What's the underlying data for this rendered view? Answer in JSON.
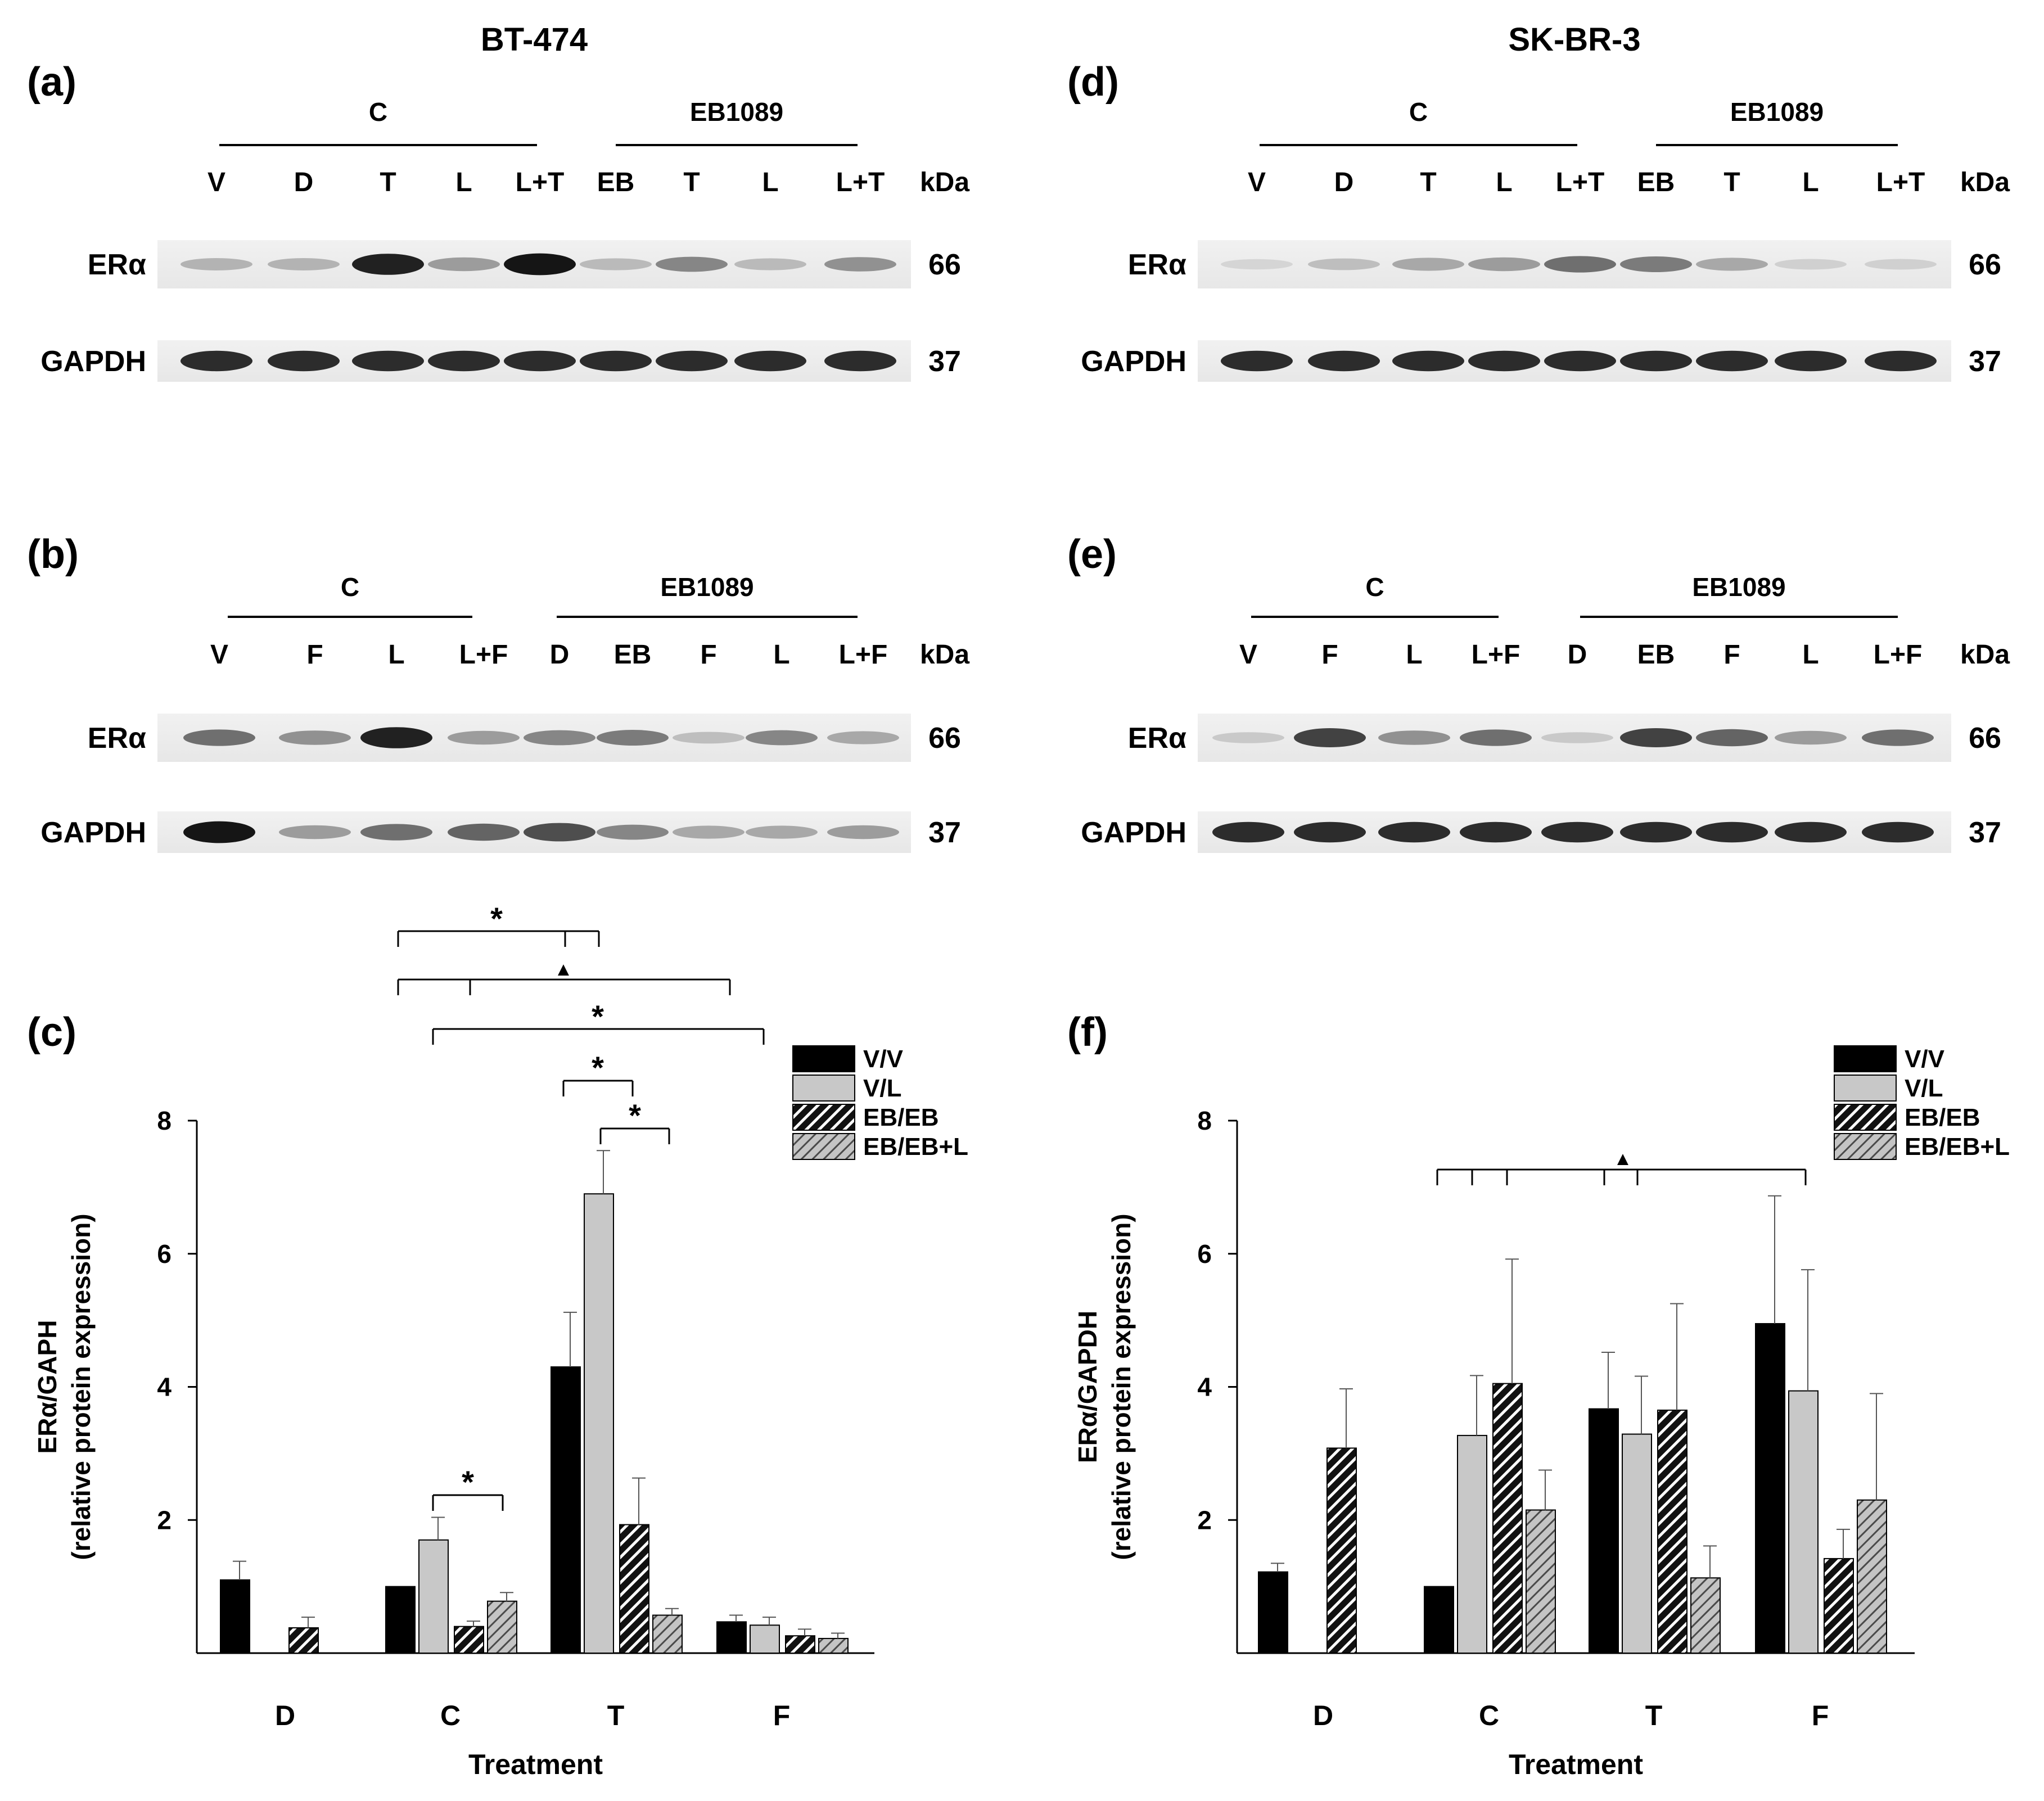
{
  "titles": {
    "left": "BT-474",
    "right": "SK-BR-3"
  },
  "blots": [
    {
      "panel": "(a)",
      "groups": [
        "C",
        "EB1089"
      ],
      "lanes": [
        "V",
        "D",
        "T",
        "L",
        "L+T",
        "EB",
        "T",
        "L",
        "L+T"
      ],
      "kda_label": "kDa",
      "rows": [
        {
          "label": "ERα",
          "kda": "66"
        },
        {
          "label": "GAPDH",
          "kda": "37"
        }
      ]
    },
    {
      "panel": "(b)",
      "groups": [
        "C",
        "EB1089"
      ],
      "lanes": [
        "V",
        "F",
        "L",
        "L+F",
        "D",
        "EB",
        "F",
        "L",
        "L+F"
      ],
      "kda_label": "kDa",
      "rows": [
        {
          "label": "ERα",
          "kda": "66"
        },
        {
          "label": "GAPDH",
          "kda": "37"
        }
      ]
    },
    {
      "panel": "(d)",
      "groups": [
        "C",
        "EB1089"
      ],
      "lanes": [
        "V",
        "D",
        "T",
        "L",
        "L+T",
        "EB",
        "T",
        "L",
        "L+T"
      ],
      "kda_label": "kDa",
      "rows": [
        {
          "label": "ERα",
          "kda": "66"
        },
        {
          "label": "GAPDH",
          "kda": "37"
        }
      ]
    },
    {
      "panel": "(e)",
      "groups": [
        "C",
        "EB1089"
      ],
      "lanes": [
        "V",
        "F",
        "L",
        "L+F",
        "D",
        "EB",
        "F",
        "L",
        "L+F"
      ],
      "kda_label": "kDa",
      "rows": [
        {
          "label": "ERα",
          "kda": "66"
        },
        {
          "label": "GAPDH",
          "kda": "37"
        }
      ]
    }
  ],
  "chart_data": [
    {
      "panel": "(c)",
      "type": "bar",
      "categories": [
        "D",
        "C",
        "T",
        "F"
      ],
      "xlabel": "Treatment",
      "ylabel": "ERα/GAPH",
      "ylabel2": "(relative protein expression)",
      "ylim": [
        0,
        8
      ],
      "yticks": [
        "2",
        "4",
        "6",
        "8"
      ],
      "legend_position": "top-right",
      "series": [
        {
          "name": "V/V",
          "pattern": "solid-black",
          "values": [
            1.1,
            1.0,
            4.3,
            0.47
          ],
          "errors": [
            0.28,
            0,
            0.82,
            0.1
          ]
        },
        {
          "name": "V/L",
          "pattern": "solid-gray",
          "values": [
            null,
            1.7,
            6.9,
            0.42
          ],
          "errors": [
            null,
            0.34,
            0.65,
            0.12
          ]
        },
        {
          "name": "EB/EB",
          "pattern": "hatch-dark",
          "values": [
            0.38,
            0.4,
            1.93,
            0.26
          ],
          "errors": [
            0.16,
            0.08,
            0.7,
            0.1
          ]
        },
        {
          "name": "EB/EB+L",
          "pattern": "hatch-light",
          "values": [
            null,
            0.78,
            0.57,
            0.22
          ],
          "errors": [
            null,
            0.13,
            0.1,
            0.08
          ]
        }
      ],
      "annotations": [
        "*",
        "▲",
        "*",
        "*",
        "*",
        "*"
      ]
    },
    {
      "panel": "(f)",
      "type": "bar",
      "categories": [
        "D",
        "C",
        "T",
        "F"
      ],
      "xlabel": "Treatment",
      "ylabel": "ERα/GAPDH",
      "ylabel2": "(relative protein expression)",
      "ylim": [
        0,
        8
      ],
      "yticks": [
        "2",
        "4",
        "6",
        "8"
      ],
      "legend_position": "top-right",
      "series": [
        {
          "name": "V/V",
          "pattern": "solid-black",
          "values": [
            1.22,
            1.0,
            3.67,
            4.95
          ],
          "errors": [
            0.13,
            0,
            0.85,
            1.92
          ]
        },
        {
          "name": "V/L",
          "pattern": "solid-gray",
          "values": [
            null,
            3.27,
            3.29,
            3.94
          ],
          "errors": [
            null,
            0.9,
            0.87,
            1.82
          ]
        },
        {
          "name": "EB/EB",
          "pattern": "hatch-dark",
          "values": [
            3.08,
            4.05,
            3.65,
            1.42
          ],
          "errors": [
            0.89,
            1.87,
            1.6,
            0.44
          ]
        },
        {
          "name": "EB/EB+L",
          "pattern": "hatch-light",
          "values": [
            null,
            2.15,
            1.13,
            2.3
          ],
          "errors": [
            null,
            0.6,
            0.48,
            1.6
          ]
        }
      ],
      "annotations": [
        "▲"
      ]
    }
  ]
}
